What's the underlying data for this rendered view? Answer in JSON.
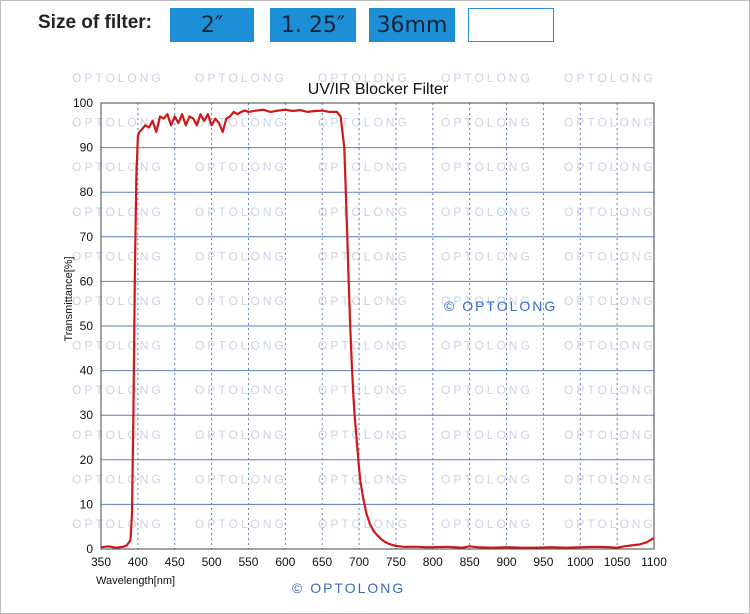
{
  "header": {
    "label": "Size of filter:",
    "options": [
      "2″",
      "1. 25″",
      "36mm",
      ""
    ],
    "accent_color": "#1e8ed6"
  },
  "watermark": {
    "text": "OPTOLONG",
    "chart_mark": "© OPTOLONG",
    "footer_mark": "© OPTOLONG",
    "color": "#3a6cc4"
  },
  "chart_data": {
    "type": "line",
    "title": "UV/IR Blocker Filter",
    "xlabel": "Wavelength[nm]",
    "ylabel": "Transmittance[%]",
    "xlim": [
      350,
      1100
    ],
    "ylim": [
      0,
      100
    ],
    "xticks": [
      350,
      400,
      450,
      500,
      550,
      600,
      650,
      700,
      750,
      800,
      850,
      900,
      950,
      1000,
      1050,
      1100
    ],
    "yticks": [
      0,
      10,
      20,
      30,
      40,
      50,
      60,
      70,
      80,
      90,
      100
    ],
    "grid": true,
    "line_color": "#d01818",
    "series": [
      {
        "x": [
          350,
          360,
          370,
          380,
          385,
          390,
          392,
          394,
          396,
          398,
          400,
          402,
          405,
          410,
          415,
          420,
          425,
          430,
          435,
          440,
          445,
          450,
          455,
          460,
          465,
          470,
          475,
          480,
          485,
          490,
          495,
          500,
          505,
          510,
          515,
          520,
          525,
          530,
          535,
          540,
          545,
          550,
          560,
          570,
          580,
          590,
          600,
          610,
          620,
          630,
          640,
          650,
          660,
          670,
          675,
          680,
          682,
          684,
          686,
          688,
          690,
          692,
          694,
          696,
          698,
          700,
          702,
          704,
          706,
          708,
          710,
          712,
          715,
          720,
          725,
          730,
          735,
          740,
          745,
          750,
          755,
          760,
          770,
          780,
          790,
          800,
          820,
          840,
          850,
          860,
          880,
          900,
          920,
          940,
          960,
          980,
          1000,
          1020,
          1040,
          1050,
          1060,
          1070,
          1080,
          1090,
          1100
        ],
        "y": [
          0.4,
          0.6,
          0.3,
          0.5,
          0.8,
          2,
          8,
          30,
          62,
          84,
          92.5,
          93.5,
          94,
          95,
          94.5,
          96,
          93.5,
          97,
          96.5,
          97.5,
          95,
          97,
          95.5,
          97.5,
          95,
          97,
          96.5,
          95,
          97.5,
          96,
          97.5,
          95,
          96.5,
          95.5,
          93.5,
          96.5,
          97,
          98,
          97.5,
          98,
          98.3,
          98,
          98.3,
          98.5,
          98,
          98.3,
          98.5,
          98.2,
          98.4,
          98,
          98.2,
          98.3,
          98,
          98,
          97,
          90,
          80,
          70,
          60,
          50,
          42,
          35,
          30,
          26,
          22,
          18,
          15,
          13,
          11,
          9.5,
          8,
          7,
          5.5,
          4,
          3,
          2.2,
          1.6,
          1.2,
          0.9,
          0.7,
          0.6,
          0.5,
          0.5,
          0.5,
          0.4,
          0.4,
          0.5,
          0.3,
          0.6,
          0.4,
          0.3,
          0.4,
          0.3,
          0.3,
          0.4,
          0.3,
          0.4,
          0.5,
          0.4,
          0.3,
          0.6,
          0.8,
          1,
          1.5,
          2.5
        ]
      }
    ]
  }
}
